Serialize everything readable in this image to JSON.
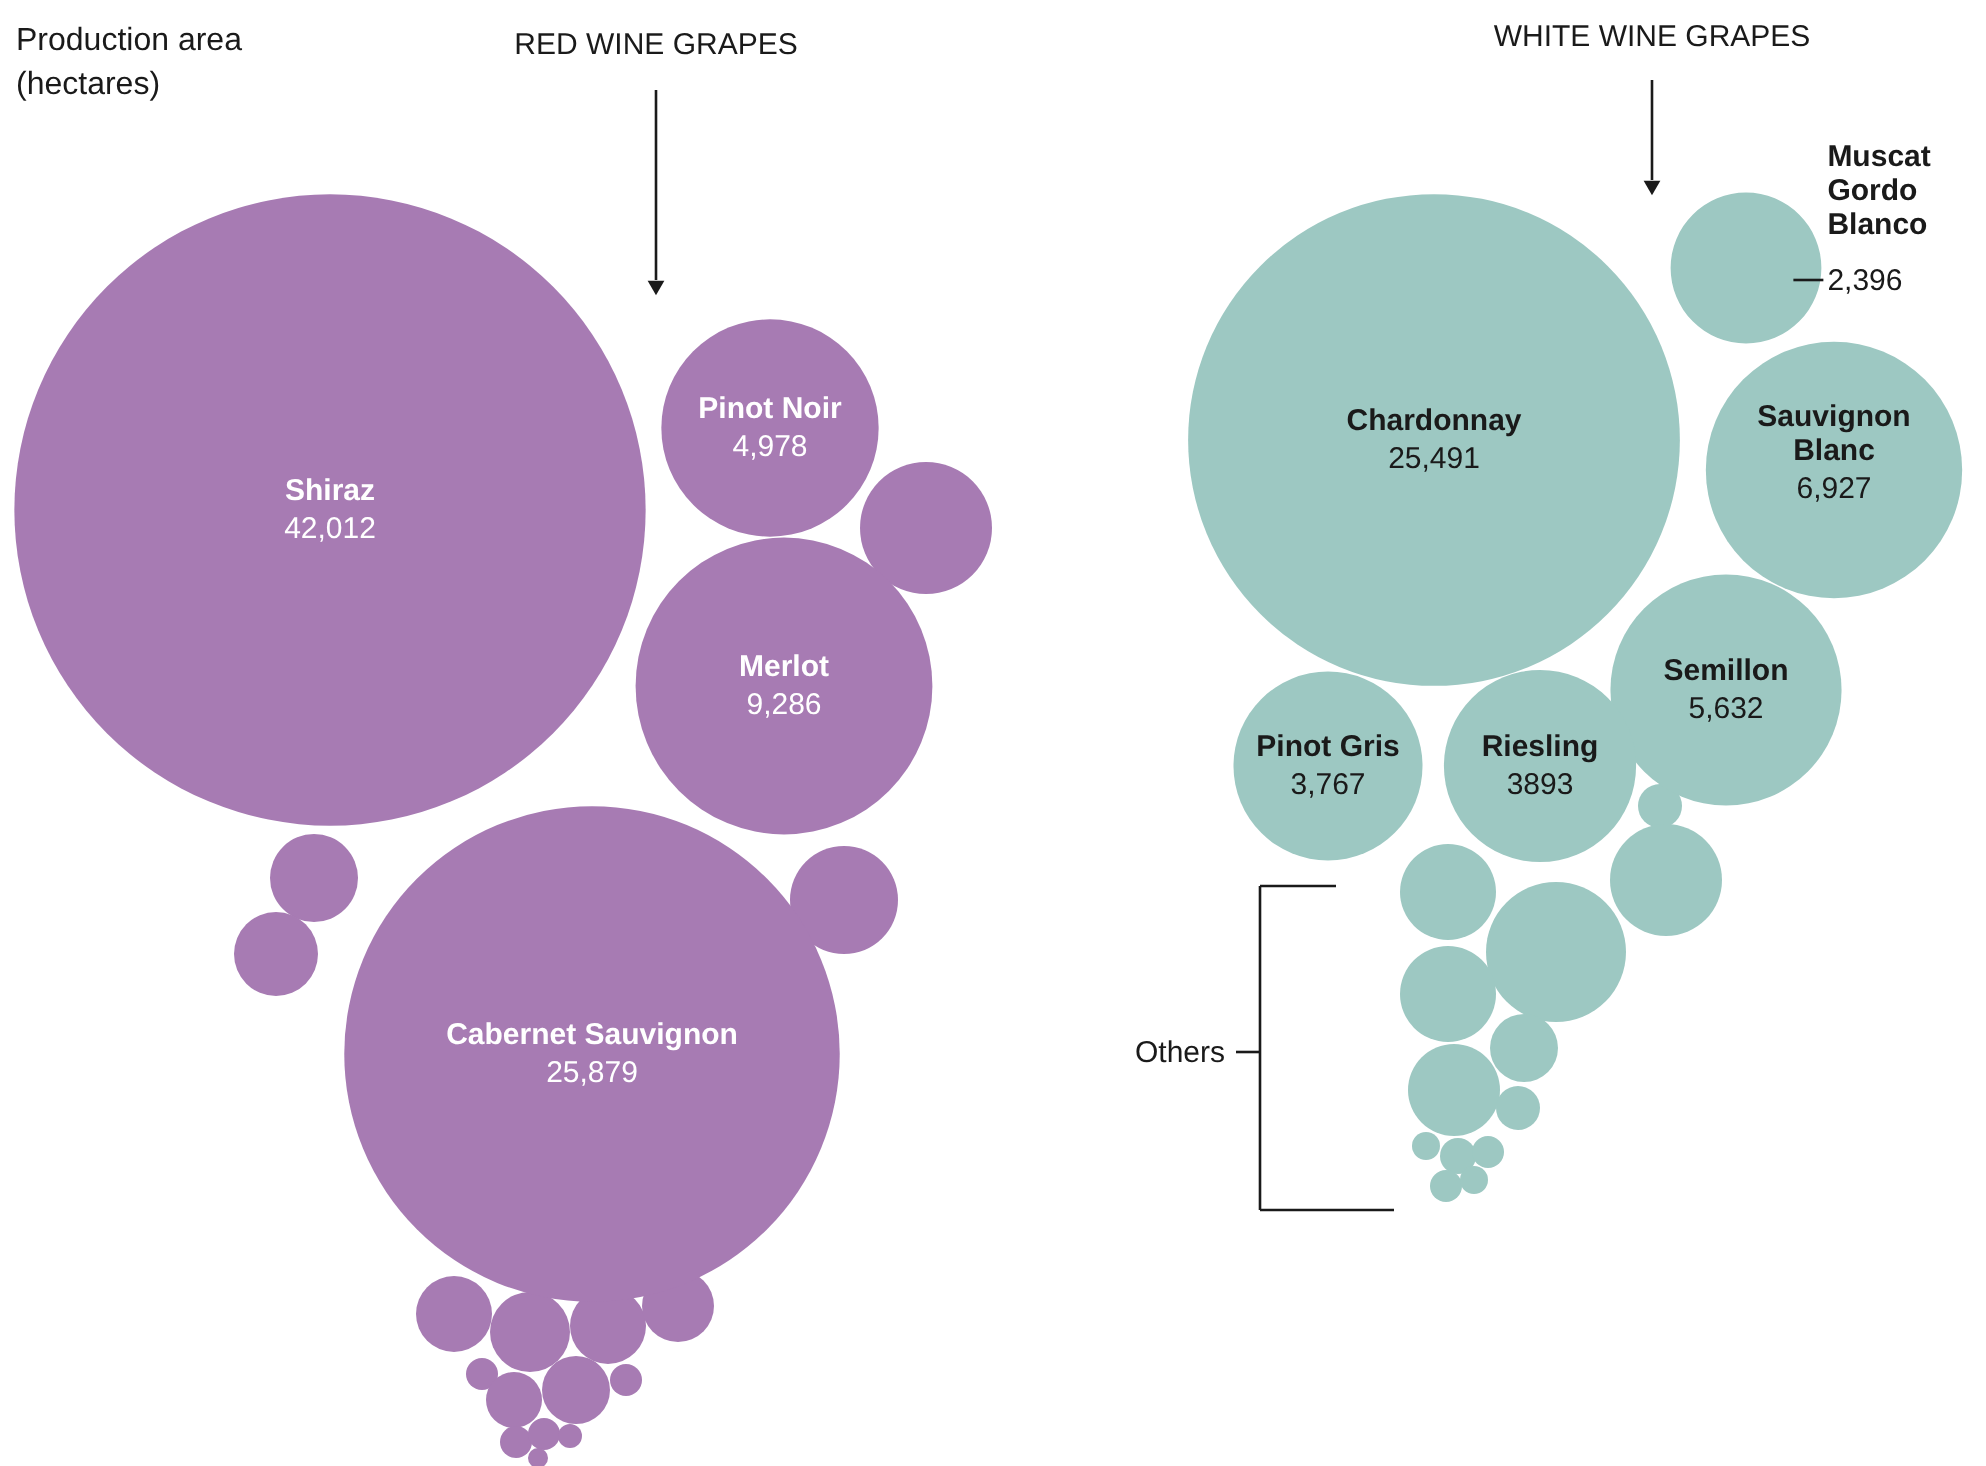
{
  "chart_data": {
    "type": "other",
    "title": "Production area (hectares)",
    "categories": [
      "Shiraz",
      "Pinot Noir",
      "Merlot",
      "Cabernet Sauvignon",
      "Chardonnay",
      "Muscat Gordo Blanco",
      "Sauvignon Blanc",
      "Semillon",
      "Pinot Gris",
      "Riesling"
    ],
    "values": [
      42012,
      4978,
      9286,
      25879,
      25491,
      2396,
      6927,
      5632,
      3767,
      3893
    ],
    "value_labels": [
      "42,012",
      "4,978",
      "9,286",
      "25,879",
      "25,491",
      "2,396",
      "6,927",
      "5,632",
      "3,767",
      "3893"
    ],
    "colors": [
      "#a77bb3",
      "#a77bb3",
      "#a77bb3",
      "#a77bb3",
      "#9dc8c2",
      "#9dc8c2",
      "#9dc8c2",
      "#9dc8c2",
      "#9dc8c2",
      "#9dc8c2"
    ],
    "annotations": [
      "RED WINE GRAPES",
      "WHITE WINE GRAPES",
      "Others"
    ]
  }
}
